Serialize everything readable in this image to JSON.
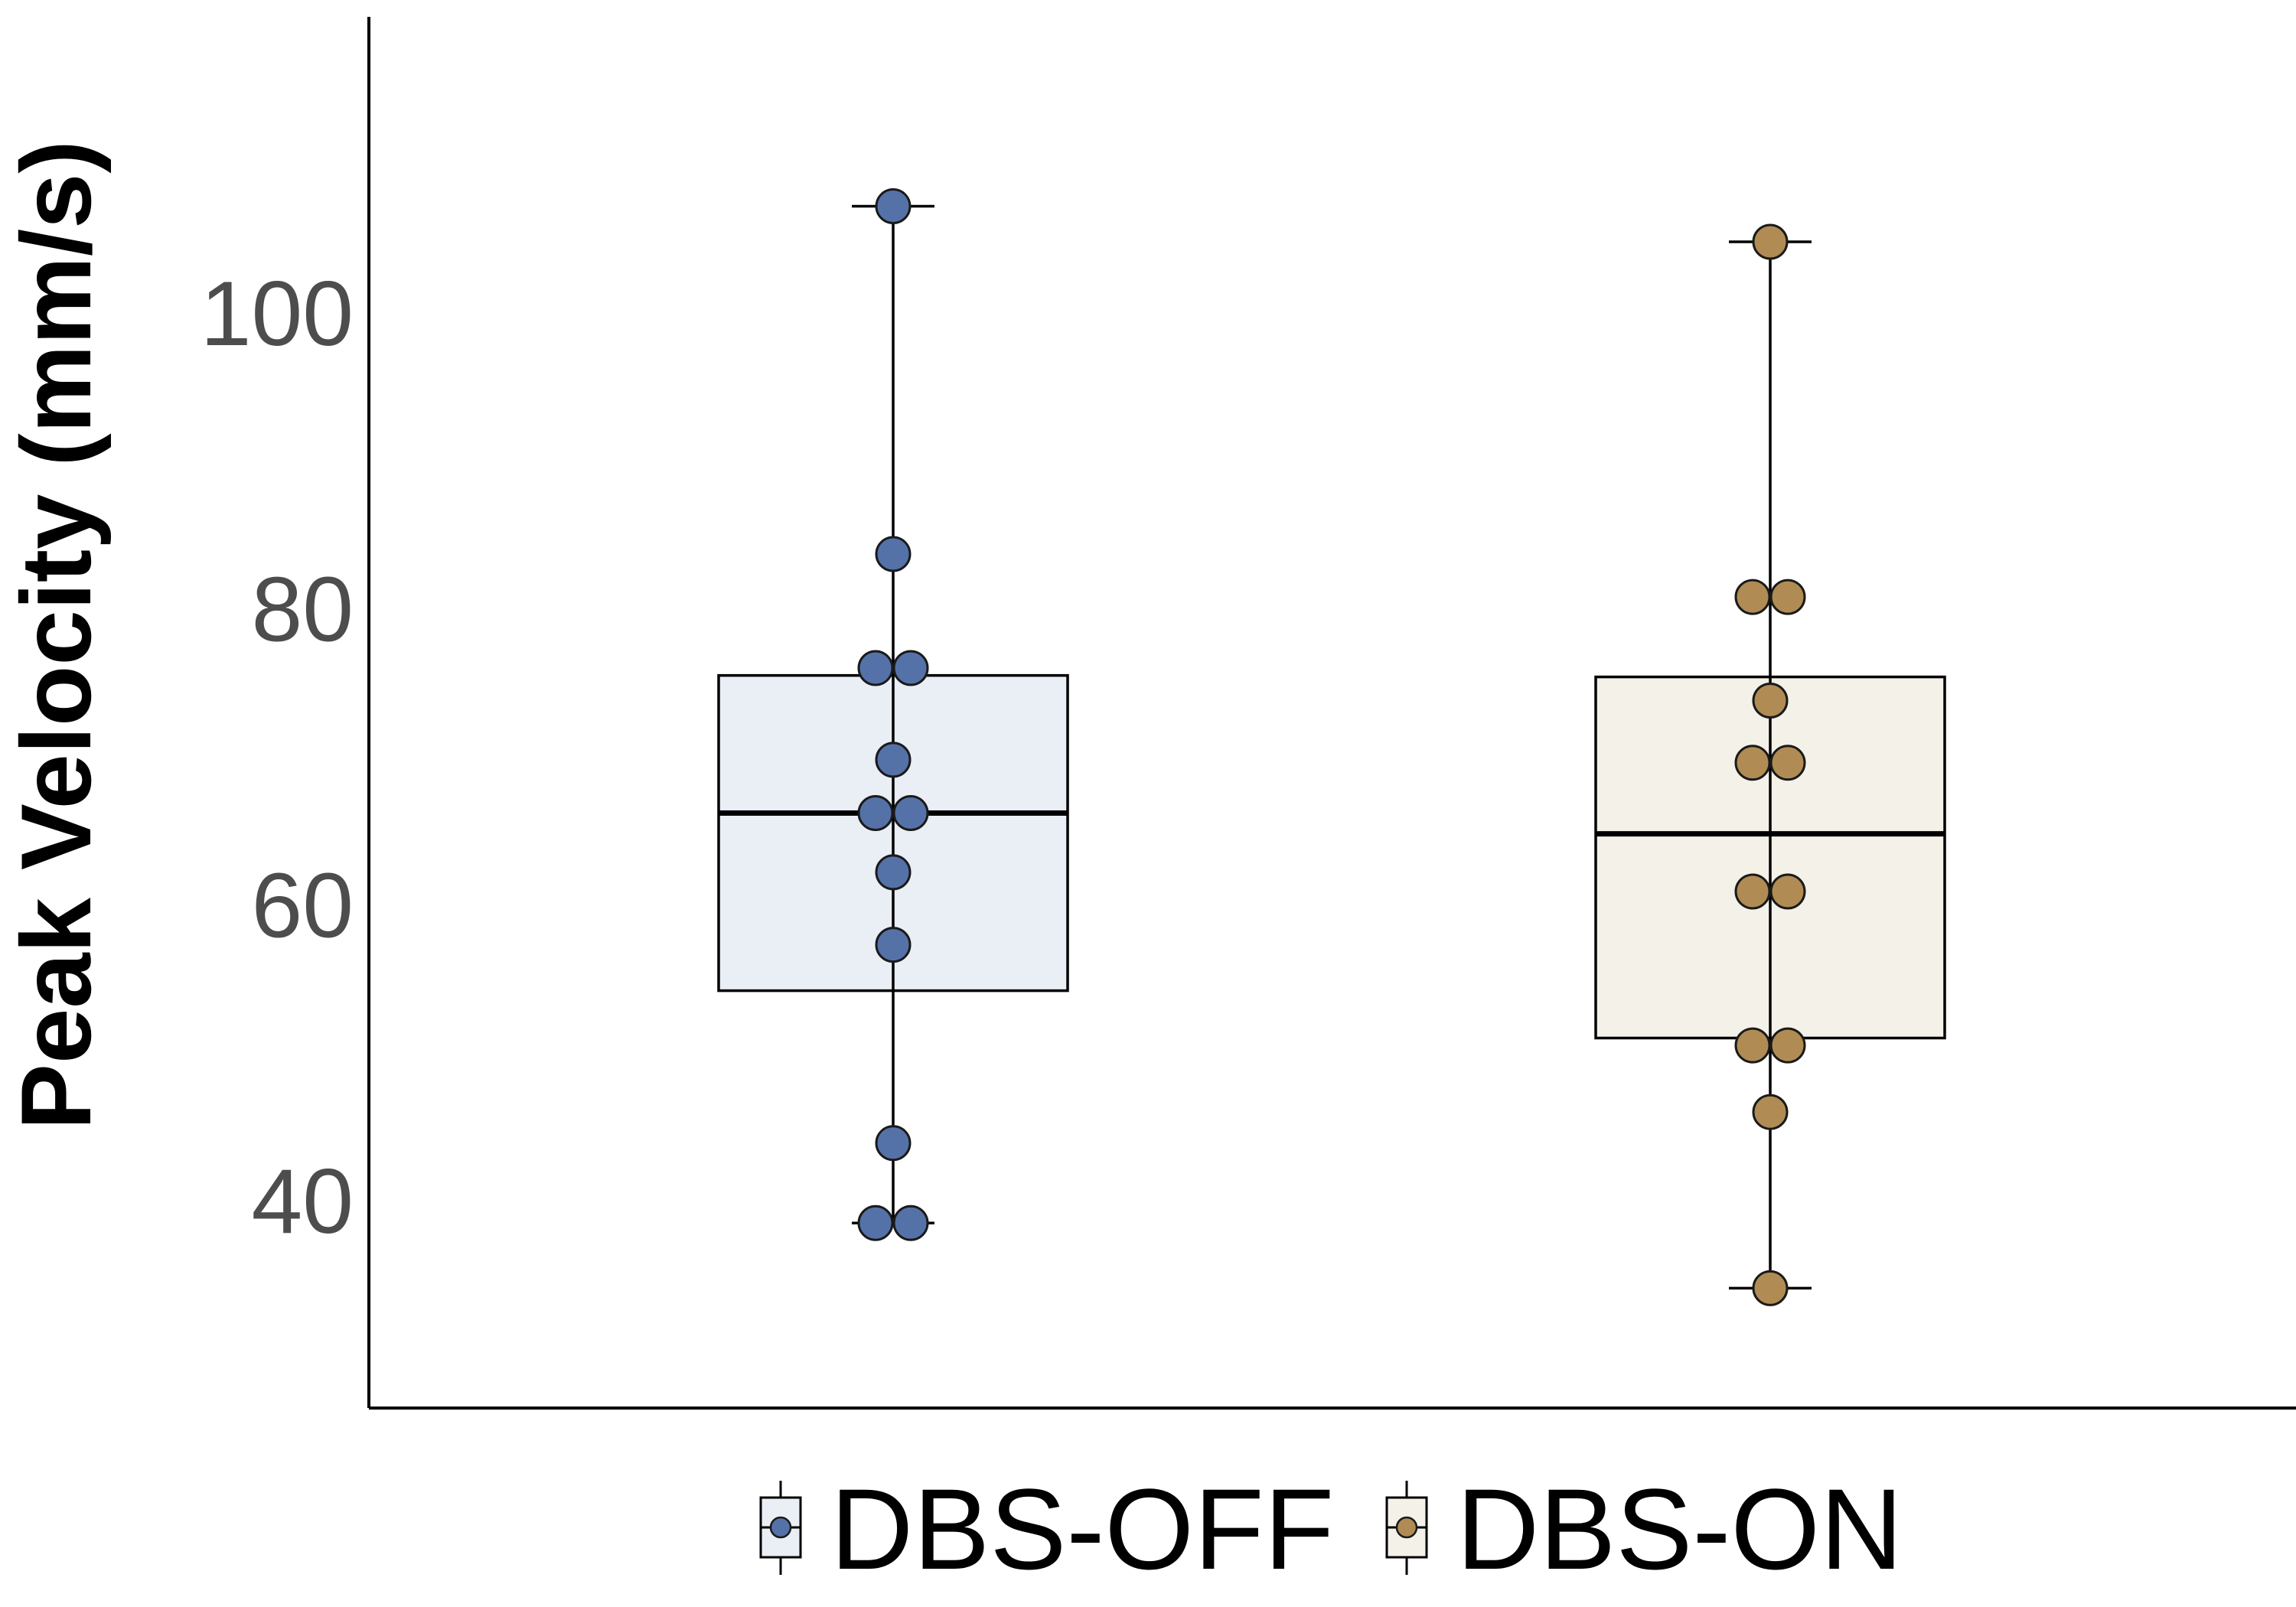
{
  "chart_data": {
    "type": "box",
    "title": "",
    "xlabel": "",
    "ylabel": "Peak Velocity (mm/s)",
    "ylim": [
      26,
      120
    ],
    "yticks": [
      40,
      60,
      80,
      100
    ],
    "grid": false,
    "legend_position": "bottom",
    "series": [
      {
        "name": "DBS-OFF",
        "fill_color": "#eaeef5",
        "point_color": "#5572a8",
        "box": {
          "whisker_low": 38.5,
          "q1": 54.2,
          "median": 66.2,
          "q3": 75.5,
          "whisker_high": 107.2
        },
        "points": [
          107.2,
          83.7,
          76.0,
          76.0,
          69.8,
          66.2,
          66.2,
          62.2,
          57.3,
          43.9,
          38.5,
          38.5
        ]
      },
      {
        "name": "DBS-ON",
        "fill_color": "#f4f1e9",
        "point_color": "#b08c54",
        "box": {
          "whisker_low": 34.1,
          "q1": 51.0,
          "median": 64.8,
          "q3": 75.4,
          "whisker_high": 104.8
        },
        "points": [
          104.8,
          80.8,
          80.8,
          73.8,
          69.6,
          69.6,
          60.9,
          60.9,
          50.5,
          50.5,
          46.0,
          34.1
        ]
      }
    ]
  }
}
